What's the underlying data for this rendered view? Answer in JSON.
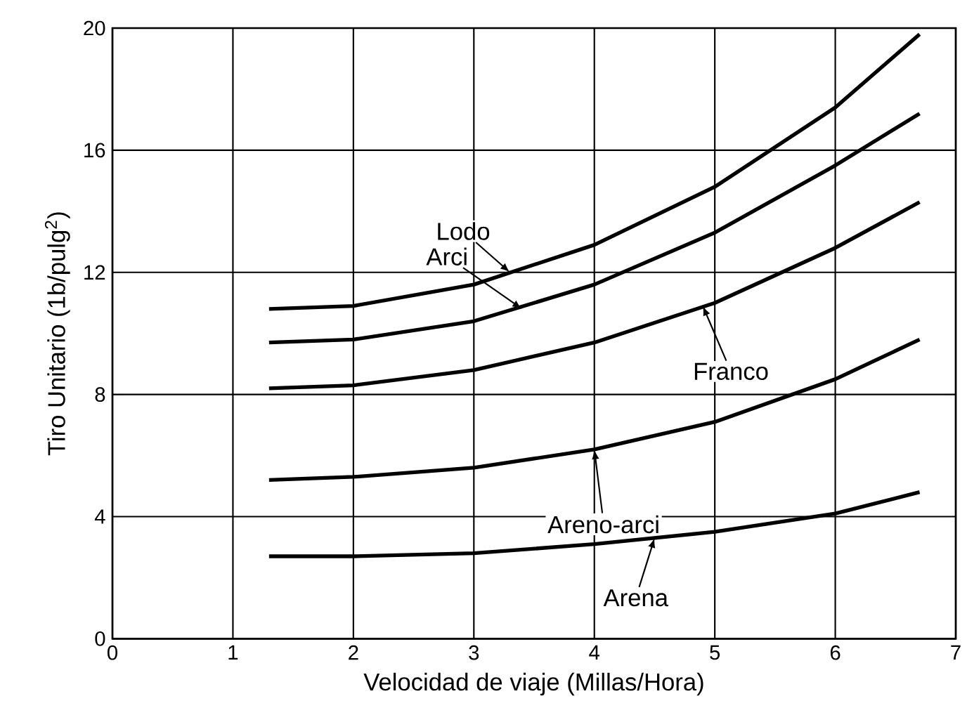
{
  "chart_data": {
    "type": "line",
    "xlabel": "Velocidad de viaje (Millas/Hora)",
    "ylabel": "Tiro Unitario (1b/pulg$^{2}$)",
    "xlim": [
      0,
      7
    ],
    "ylim": [
      0,
      20
    ],
    "xticks": [
      0,
      1,
      2,
      3,
      4,
      5,
      6,
      7
    ],
    "yticks": [
      0,
      4,
      8,
      12,
      16,
      20
    ],
    "grid": true,
    "marker": "none",
    "line_style": "solid",
    "series": [
      {
        "color": "#000000",
        "x": [
          1.3,
          2,
          3,
          4,
          5,
          6,
          6.7
        ],
        "values": [
          10.8,
          10.9,
          11.6,
          12.9,
          14.8,
          17.4,
          19.8
        ]
      },
      {
        "color": "#000000",
        "x": [
          1.3,
          2,
          3,
          4,
          5,
          6,
          6.7
        ],
        "values": [
          9.7,
          9.8,
          10.4,
          11.6,
          13.3,
          15.5,
          17.2
        ]
      },
      {
        "color": "#000000",
        "x": [
          1.3,
          2,
          3,
          4,
          5,
          6,
          6.7
        ],
        "values": [
          8.2,
          8.3,
          8.8,
          9.7,
          11.0,
          12.8,
          14.3
        ]
      },
      {
        "color": "#000000",
        "x": [
          1.3,
          2,
          3,
          4,
          5,
          6,
          6.7
        ],
        "values": [
          5.2,
          5.3,
          5.6,
          6.2,
          7.1,
          8.5,
          9.8
        ]
      },
      {
        "color": "#000000",
        "x": [
          1.3,
          2,
          3,
          4,
          5,
          6,
          6.7
        ],
        "values": [
          2.7,
          2.7,
          2.8,
          3.1,
          3.5,
          4.1,
          4.8
        ]
      }
    ],
    "annotations": [
      {
        "text": "Lodo",
        "x": 3.3,
        "y": 12.0
      },
      {
        "text": "Arci",
        "x": 3.4,
        "y": 10.8
      },
      {
        "text": "Franco",
        "x": 4.9,
        "y": 10.9
      },
      {
        "text": "Areno-arci",
        "x": 4.0,
        "y": 6.2
      },
      {
        "text": "Arena",
        "x": 4.5,
        "y": 3.3
      }
    ]
  }
}
